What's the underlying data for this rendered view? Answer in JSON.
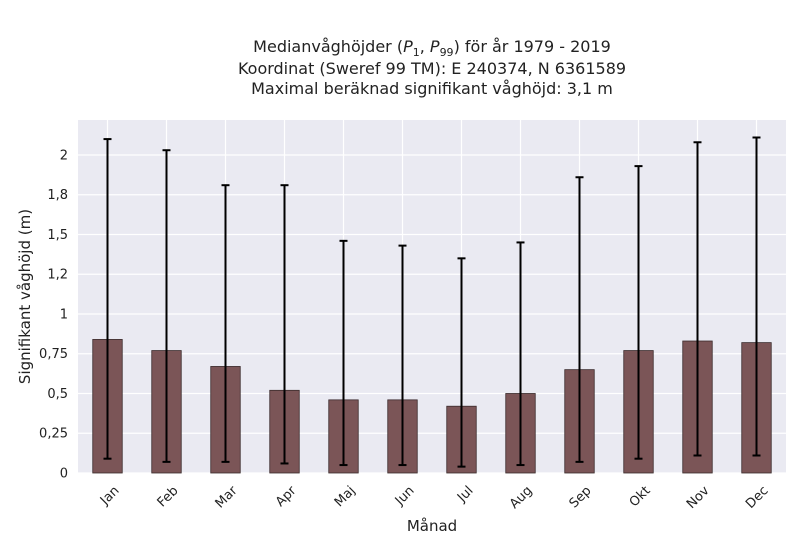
{
  "chart_data": {
    "type": "bar",
    "title_lines": [
      "Medianvåghöjder (P1, P99) för år 1979 - 2019",
      "Koordinat (Sweref 99 TM): E 240374, N 6361589",
      "Maximal beräknad signifikant våghöjd: 3,1 m"
    ],
    "xlabel": "Månad",
    "ylabel": "Signifikant våghöjd (m)",
    "categories": [
      "Jan",
      "Feb",
      "Mar",
      "Apr",
      "Maj",
      "Jun",
      "Jul",
      "Aug",
      "Sep",
      "Okt",
      "Nov",
      "Dec"
    ],
    "values": [
      0.84,
      0.77,
      0.67,
      0.52,
      0.46,
      0.46,
      0.42,
      0.5,
      0.65,
      0.77,
      0.83,
      0.82
    ],
    "error_low": [
      0.09,
      0.07,
      0.07,
      0.06,
      0.05,
      0.05,
      0.04,
      0.05,
      0.07,
      0.09,
      0.11,
      0.11
    ],
    "error_high": [
      2.1,
      2.03,
      1.81,
      1.81,
      1.46,
      1.43,
      1.35,
      1.45,
      1.86,
      1.93,
      2.08,
      2.11
    ],
    "ylim": [
      0,
      2.22
    ],
    "yticks": [
      0,
      0.25,
      0.5,
      0.75,
      1,
      1.25,
      1.5,
      1.75,
      2
    ],
    "ytick_labels": [
      "0",
      "0,25",
      "0,5",
      "0,75",
      "1",
      "1,2",
      "1,5",
      "1,8",
      "2"
    ],
    "grid": true,
    "colors": {
      "bar": "#7b5557",
      "bar_edge": "#3a2a2b",
      "plot_bg": "#eaeaf2",
      "grid": "#ffffff",
      "error_bar": "#000000"
    }
  }
}
